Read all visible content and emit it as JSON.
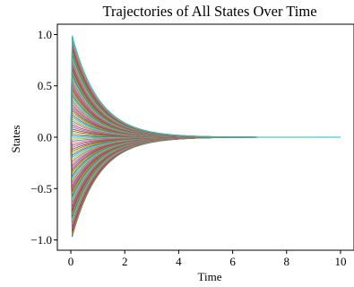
{
  "chart_data": {
    "type": "line",
    "title": "Trajectories of All States Over Time",
    "xlabel": "Time",
    "ylabel": "States",
    "xlim": [
      -0.5,
      10.5
    ],
    "ylim": [
      -1.1,
      1.1
    ],
    "x_ticks": [
      0,
      2,
      4,
      6,
      8,
      10
    ],
    "x_tick_labels": [
      "0",
      "2",
      "4",
      "6",
      "8",
      "10"
    ],
    "y_ticks": [
      -1.0,
      -0.5,
      0.0,
      0.5,
      1.0
    ],
    "y_tick_labels": [
      "−1.0",
      "−0.5",
      "0.0",
      "0.5",
      "1.0"
    ],
    "grid": false,
    "legend": "none",
    "series_count": 100,
    "series_description": "Each state starts near 0 at t=0, jumps to an initial value in [-1, 1] and then decays exponentially to 0 by about t=5",
    "initial_value_range": [
      -0.97,
      0.99
    ],
    "decay_rate": 1.0,
    "x_range": [
      0,
      10
    ],
    "palette": [
      "#1f77b4",
      "#ff7f0e",
      "#2ca02c",
      "#d62728",
      "#9467bd",
      "#8c564b",
      "#e377c2",
      "#7f7f7f",
      "#bcbd22",
      "#17becf"
    ]
  }
}
